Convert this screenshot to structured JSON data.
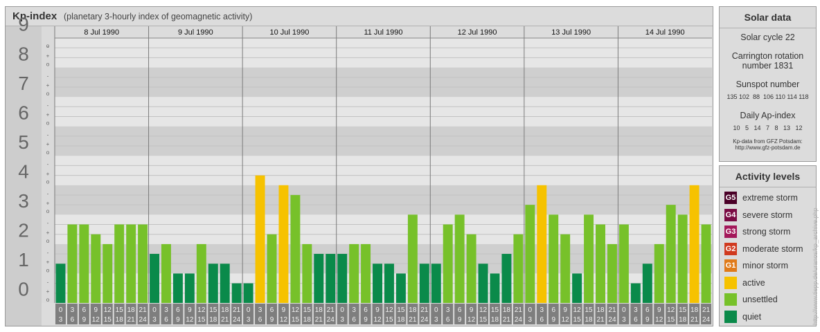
{
  "header": {
    "title": "Kp-index",
    "subtitle": "(planetary 3-hourly index of geomagnetic activity)"
  },
  "chart_data": {
    "type": "bar",
    "ylim": [
      0,
      9
    ],
    "y_ticks": [
      "0",
      "1",
      "2",
      "3",
      "4",
      "5",
      "6",
      "7",
      "8",
      "9"
    ],
    "minor_ticks": [
      "o",
      "+",
      "-"
    ],
    "days": [
      "8 Jul 1990",
      "9 Jul 1990",
      "10 Jul 1990",
      "11 Jul 1990",
      "12 Jul 1990",
      "13 Jul 1990",
      "14 Jul 1990"
    ],
    "interval_labels": [
      [
        "0",
        "3"
      ],
      [
        "3",
        "6"
      ],
      [
        "6",
        "9"
      ],
      [
        "9",
        "12"
      ],
      [
        "12",
        "15"
      ],
      [
        "15",
        "18"
      ],
      [
        "18",
        "21"
      ],
      [
        "21",
        "24"
      ]
    ],
    "values": [
      1.333,
      2.667,
      2.667,
      2.333,
      2.0,
      2.667,
      2.667,
      2.667,
      1.667,
      2.0,
      1.0,
      1.0,
      2.0,
      1.333,
      1.333,
      0.667,
      0.667,
      4.333,
      2.333,
      4.0,
      3.667,
      2.0,
      1.667,
      1.667,
      1.667,
      2.0,
      2.0,
      1.333,
      1.333,
      1.0,
      3.0,
      1.333,
      1.333,
      2.667,
      3.0,
      2.333,
      1.333,
      1.0,
      1.667,
      2.333,
      3.333,
      4.0,
      3.0,
      2.333,
      1.0,
      3.0,
      2.667,
      2.0,
      2.667,
      0.667,
      1.333,
      2.0,
      3.333,
      3.0,
      4.0,
      2.667
    ],
    "colors": {
      "quiet": "#0a8a4a",
      "unsettled": "#77c12a",
      "active": "#f6c200",
      "g1": "#e07b1a",
      "g2": "#d03a1f",
      "g3": "#a3185a",
      "g4": "#7a0b44",
      "g5": "#4a0027"
    }
  },
  "solar": {
    "title": "Solar data",
    "cycle": "Solar cycle 22",
    "carrington_1": "Carrington rotation",
    "carrington_2": "number 1831",
    "sunspot_title": "Sunspot number",
    "sunspot_values": "135 102  88  106 110 114 118",
    "ap_title": "Daily Ap-index",
    "ap_values": "10   5   14   7   8   13   12",
    "source_1": "Kp-data from GFZ Potsdam:",
    "source_2": "http://www.gfz-potsdam.de"
  },
  "activity": {
    "title": "Activity levels",
    "levels": [
      {
        "badge": "G5",
        "label": "extreme storm",
        "color": "#4a0027"
      },
      {
        "badge": "G4",
        "label": "severe storm",
        "color": "#7a0b44"
      },
      {
        "badge": "G3",
        "label": "strong storm",
        "color": "#a3185a"
      },
      {
        "badge": "G2",
        "label": "moderate storm",
        "color": "#d03a1f"
      },
      {
        "badge": "G1",
        "label": "minor storm",
        "color": "#e07b1a"
      },
      {
        "badge": "",
        "label": "active",
        "color": "#f6c200"
      },
      {
        "badge": "",
        "label": "unsettled",
        "color": "#77c12a"
      },
      {
        "badge": "",
        "label": "quiet",
        "color": "#0a8a4a"
      }
    ]
  },
  "watermark": "http://www.tiepp.de/uranos/kp_archive.php"
}
